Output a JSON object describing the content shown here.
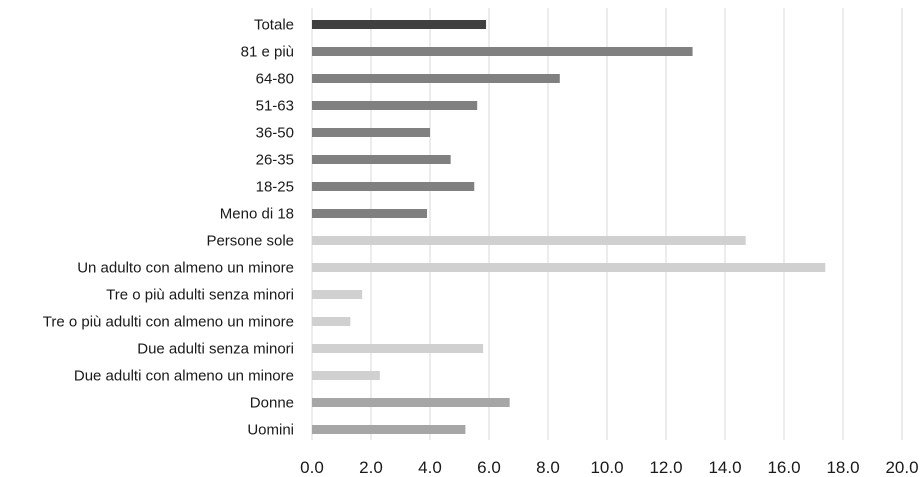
{
  "chart_data": {
    "type": "bar",
    "orientation": "horizontal",
    "categories": [
      "Totale",
      "81 e più",
      "64-80",
      "51-63",
      "36-50",
      "26-35",
      "18-25",
      "Meno di 18",
      "Persone sole",
      "Un adulto con almeno un minore",
      "Tre o più adulti senza minori",
      "Tre o più adulti con almeno un minore",
      "Due adulti senza minori",
      "Due adulti con almeno un minore",
      "Donne",
      "Uomini"
    ],
    "values": [
      5.9,
      12.9,
      8.4,
      5.6,
      4.0,
      4.7,
      5.5,
      3.9,
      14.7,
      17.4,
      1.7,
      1.3,
      5.8,
      2.3,
      6.7,
      5.2
    ],
    "colors": [
      "#404040",
      "#808080",
      "#808080",
      "#808080",
      "#808080",
      "#808080",
      "#808080",
      "#808080",
      "#d0d0d0",
      "#d0d0d0",
      "#d0d0d0",
      "#d0d0d0",
      "#d0d0d0",
      "#d0d0d0",
      "#a6a6a6",
      "#a6a6a6"
    ],
    "xlim": [
      0,
      20
    ],
    "ticks": [
      "0.0",
      "2.0",
      "4.0",
      "6.0",
      "8.0",
      "10.0",
      "12.0",
      "14.0",
      "16.0",
      "18.0",
      "20.0"
    ],
    "tick_values": [
      0,
      2,
      4,
      6,
      8,
      10,
      12,
      14,
      16,
      18,
      20
    ],
    "grid": true,
    "gridline_color": "#d9d9d9",
    "title": "",
    "xlabel": "",
    "ylabel": ""
  }
}
